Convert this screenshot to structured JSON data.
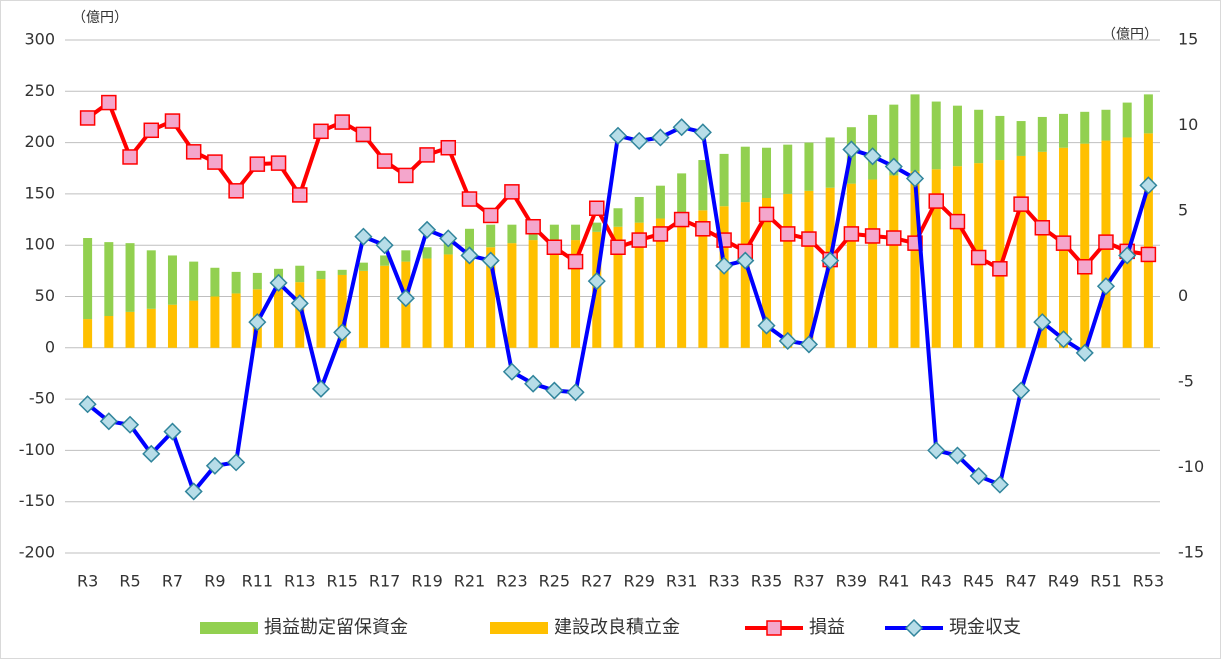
{
  "chart_data": {
    "type": "bar",
    "y_label": "（億円）",
    "y2_label": "（億円）",
    "categories": [
      "R3",
      null,
      "R5",
      null,
      "R7",
      null,
      "R9",
      null,
      "R11",
      null,
      "R13",
      null,
      "R15",
      null,
      "R17",
      null,
      "R19",
      null,
      "R21",
      null,
      "R23",
      null,
      "R25",
      null,
      "R27",
      null,
      "R29",
      null,
      "R31",
      null,
      "R33",
      null,
      "R35",
      null,
      "R37",
      null,
      "R39",
      null,
      "R41",
      null,
      "R43",
      null,
      "R45",
      null,
      "R47",
      null,
      "R49",
      null,
      "R51",
      null,
      "R53"
    ],
    "ylim": [
      -200,
      300
    ],
    "yticks": [
      -200,
      -150,
      -100,
      -50,
      0,
      50,
      100,
      150,
      200,
      250,
      300
    ],
    "y2lim": [
      -15,
      15
    ],
    "y2ticks": [
      -15,
      -10,
      -5,
      0,
      5,
      10,
      15
    ],
    "grid": true,
    "legend": "bottom",
    "series": [
      {
        "name": "損益勘定留保資金",
        "type": "bar",
        "color": "#92d050",
        "values": [
          79,
          72,
          67,
          57,
          48,
          38,
          28,
          21,
          16,
          17,
          16,
          8,
          5,
          8,
          10,
          11,
          11,
          14,
          21,
          22,
          18,
          15,
          20,
          15,
          9,
          18,
          25,
          32,
          40,
          49,
          51,
          54,
          49,
          48,
          47,
          49,
          55,
          63,
          69,
          75,
          66,
          59,
          52,
          43,
          34,
          34,
          33,
          31,
          30,
          34,
          38
        ]
      },
      {
        "name": "建設改良積立金",
        "type": "bar",
        "color": "#ffc000",
        "values": [
          28,
          31,
          35,
          38,
          42,
          46,
          50,
          53,
          57,
          60,
          64,
          67,
          71,
          75,
          80,
          84,
          87,
          91,
          95,
          98,
          102,
          105,
          100,
          105,
          113,
          118,
          122,
          126,
          130,
          134,
          138,
          142,
          146,
          150,
          153,
          156,
          160,
          164,
          168,
          172,
          174,
          177,
          180,
          183,
          187,
          191,
          195,
          199,
          202,
          205,
          209
        ]
      },
      {
        "name": "損益",
        "type": "line",
        "color": "#ff0000",
        "marker": "square",
        "marker_color": "#f4a6cc",
        "values": [
          224,
          239,
          186,
          212,
          221,
          191,
          181,
          153,
          179,
          180,
          149,
          211,
          220,
          208,
          182,
          168,
          188,
          195,
          145,
          129,
          152,
          118,
          98,
          84,
          136,
          98,
          105,
          111,
          125,
          116,
          105,
          94,
          130,
          111,
          106,
          86,
          111,
          109,
          107,
          102,
          143,
          123,
          88,
          77,
          140,
          117,
          102,
          79,
          103,
          94,
          91
        ]
      },
      {
        "name": "現金収支",
        "type": "line",
        "axis": "y2",
        "color": "#0000ff",
        "marker": "diamond",
        "marker_color": "#b7dde8",
        "values": [
          -6.3,
          -7.3,
          -7.5,
          -9.2,
          -7.9,
          -11.4,
          -9.9,
          -9.7,
          -1.5,
          0.8,
          -0.4,
          -5.4,
          -2.1,
          3.5,
          3.0,
          -0.1,
          3.9,
          3.4,
          2.4,
          2.1,
          -4.4,
          -5.1,
          -5.5,
          -5.6,
          0.9,
          9.4,
          9.1,
          9.3,
          9.9,
          9.6,
          1.8,
          2.1,
          -1.7,
          -2.6,
          -2.8,
          2.1,
          8.6,
          8.2,
          7.6,
          6.9,
          -9.0,
          -9.3,
          -10.5,
          -11.0,
          -5.5,
          -1.5,
          -2.5,
          -3.3,
          0.6,
          2.4,
          6.5
        ]
      }
    ]
  }
}
